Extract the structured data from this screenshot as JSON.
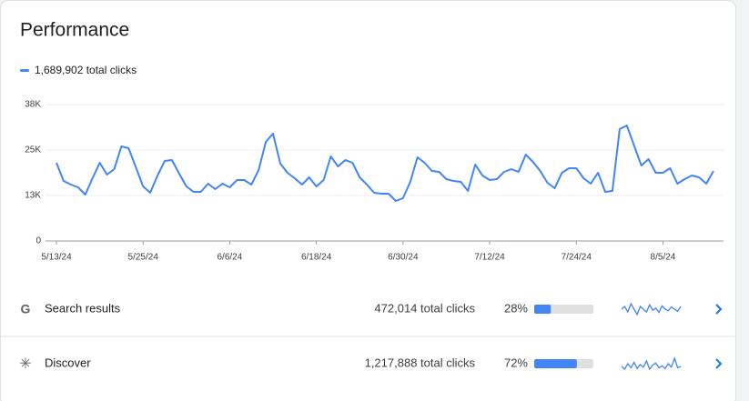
{
  "chart_data": {
    "type": "line",
    "title": "Performance",
    "categories": [
      "5/13/24",
      null,
      null,
      null,
      null,
      null,
      null,
      null,
      null,
      null,
      null,
      null,
      "5/25/24",
      null,
      null,
      null,
      null,
      null,
      null,
      null,
      null,
      null,
      null,
      null,
      "6/6/24",
      null,
      null,
      null,
      null,
      null,
      null,
      null,
      null,
      null,
      null,
      null,
      "6/18/24",
      null,
      null,
      null,
      null,
      null,
      null,
      null,
      null,
      null,
      null,
      null,
      "6/30/24",
      null,
      null,
      null,
      null,
      null,
      null,
      null,
      null,
      null,
      null,
      null,
      "7/12/24",
      null,
      null,
      null,
      null,
      null,
      null,
      null,
      null,
      null,
      null,
      null,
      "7/24/24",
      null,
      null,
      null,
      null,
      null,
      null,
      null,
      null,
      null,
      null,
      null,
      "8/5/24",
      null,
      null,
      null,
      null,
      null,
      null,
      null
    ],
    "series": [
      {
        "name": "1,689,902 total clicks",
        "color": "#4285f4",
        "values": [
          21500,
          16500,
          15500,
          14750,
          12750,
          17250,
          21500,
          18250,
          19750,
          26000,
          25500,
          20250,
          15000,
          13250,
          18000,
          22000,
          22250,
          18500,
          15000,
          13500,
          13500,
          15750,
          14250,
          15750,
          14750,
          16750,
          16750,
          15500,
          19500,
          27250,
          29500,
          21250,
          18750,
          17250,
          15500,
          17500,
          15000,
          16750,
          23250,
          20500,
          22250,
          21500,
          17500,
          15500,
          13250,
          13000,
          13000,
          11000,
          11750,
          16250,
          23000,
          21500,
          19250,
          19000,
          17000,
          16500,
          16250,
          13750,
          21000,
          18000,
          16750,
          17000,
          19000,
          19750,
          19000,
          23750,
          21750,
          19250,
          16000,
          14500,
          18750,
          20000,
          20000,
          17250,
          15750,
          18750,
          13500,
          13750,
          30750,
          31750,
          26250,
          20750,
          22500,
          18750,
          18750,
          20000,
          15750,
          17000,
          18000,
          17500,
          15750,
          19250
        ]
      }
    ],
    "ylim": [
      0,
      37500
    ],
    "yticks": [
      0,
      {
        "value": 12500,
        "label": "13K"
      },
      {
        "value": 25000,
        "label": "25K"
      },
      {
        "value": 37500,
        "label": "38K"
      }
    ],
    "grid": true
  },
  "rows": [
    {
      "name": "Search results",
      "clicks_label": "472,014 total clicks",
      "share": 28,
      "share_label": "28%",
      "sparkline": [
        50,
        55,
        45,
        60,
        50,
        40,
        55,
        50,
        45,
        58,
        48,
        52,
        44,
        56,
        50,
        47,
        54,
        50,
        46,
        55
      ]
    },
    {
      "name": "Discover",
      "clicks_label": "1,217,888 total clicks",
      "share": 72,
      "share_label": "72%",
      "sparkline": [
        40,
        20,
        60,
        30,
        70,
        25,
        55,
        35,
        80,
        20,
        50,
        65,
        30,
        45,
        25,
        60,
        35,
        100,
        30,
        40
      ]
    }
  ]
}
